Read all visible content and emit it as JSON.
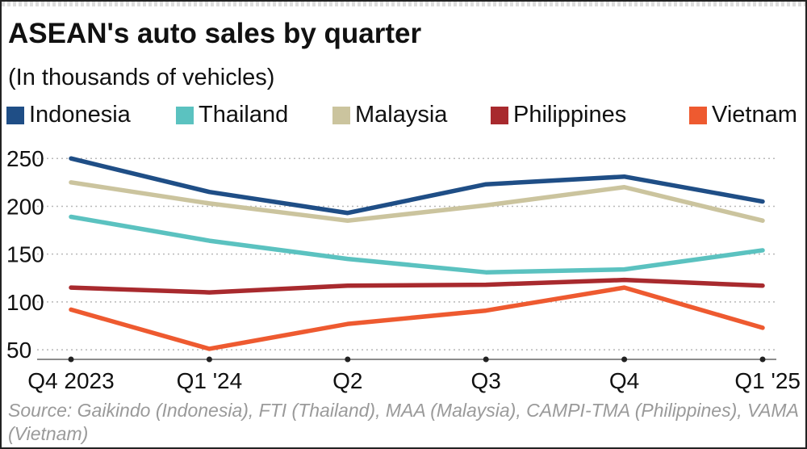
{
  "title": "ASEAN's auto sales by quarter",
  "subtitle": "(In thousands of vehicles)",
  "source": "Source: Gaikindo (Indonesia), FTI (Thailand), MAA (Malaysia), CAMPI-TMA (Philippines), VAMA (Vietnam)",
  "chart_data": {
    "type": "line",
    "categories": [
      "Q4 2023",
      "Q1 '24",
      "Q2",
      "Q3",
      "Q4",
      "Q1 '25"
    ],
    "ylim": [
      40,
      262
    ],
    "yticks": [
      "50",
      "100",
      "150",
      "200",
      "250"
    ],
    "grid": "horizontal dotted",
    "legend_placement": "top",
    "series": [
      {
        "name": "Indonesia",
        "color": "#1f4e86",
        "values": [
          250,
          215,
          193,
          223,
          231,
          205
        ]
      },
      {
        "name": "Thailand",
        "color": "#5bc2c0",
        "values": [
          189,
          164,
          145,
          131,
          134,
          154
        ]
      },
      {
        "name": "Malaysia",
        "color": "#cbc49e",
        "values": [
          225,
          203,
          185,
          201,
          220,
          185
        ]
      },
      {
        "name": "Philippines",
        "color": "#a82a2e",
        "values": [
          115,
          110,
          117,
          118,
          123,
          117
        ]
      },
      {
        "name": "Vietnam",
        "color": "#ee5a30",
        "values": [
          92,
          51,
          77,
          91,
          115,
          73
        ]
      }
    ]
  }
}
